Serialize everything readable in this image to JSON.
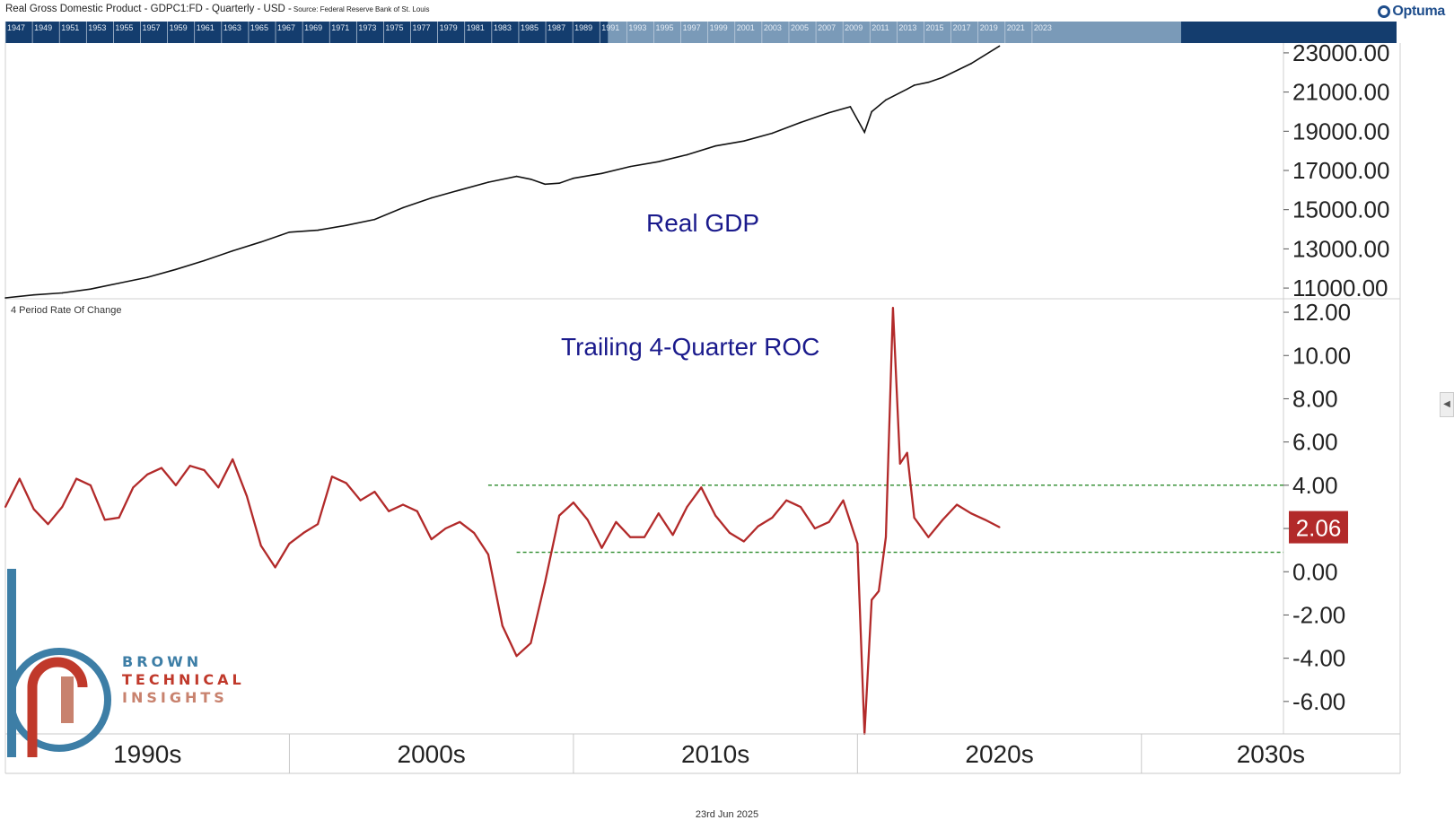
{
  "header": {
    "title": "Real Gross Domestic Product - GDPC1:FD - Quarterly - USD -",
    "source": "Source: Federal Reserve Bank of St. Louis",
    "logo_text": "Optuma"
  },
  "navigator": {
    "years": [
      "1947",
      "1949",
      "1951",
      "1953",
      "1955",
      "1957",
      "1959",
      "1961",
      "1963",
      "1965",
      "1967",
      "1969",
      "1971",
      "1973",
      "1975",
      "1977",
      "1979",
      "1981",
      "1983",
      "1985",
      "1987",
      "1989",
      "1991",
      "1993",
      "1995",
      "1997",
      "1999",
      "2001",
      "2003",
      "2005",
      "2007",
      "2009",
      "2011",
      "2013",
      "2015",
      "2017",
      "2019",
      "2021",
      "2023"
    ]
  },
  "panels": {
    "top_annotation": "Real GDP",
    "bottom_annotation": "Trailing 4-Quarter ROC",
    "bottom_indicator": "4 Period Rate Of Change",
    "last_value_label": "2.06"
  },
  "x_axis": {
    "decades": [
      "1990s",
      "2000s",
      "2010s",
      "2020s",
      "2030s"
    ]
  },
  "footer": {
    "date": "23rd Jun 2025"
  },
  "brand": {
    "line1": "BROWN",
    "line2": "TECHNICAL",
    "line3": "INSIGHTS"
  },
  "colors": {
    "gdp_line": "#111111",
    "roc_line": "#b22a2a",
    "dashed": "#2a8a2a",
    "annotation": "#1a1a8c",
    "nav_dark": "#143d6e",
    "nav_light": "#7a9ab8",
    "brand_blue": "#3d7ea6",
    "brand_red": "#c0392b"
  },
  "chart_data": [
    {
      "type": "line",
      "title": "Real GDP",
      "ylim": [
        10500,
        23500
      ],
      "y_ticks": [
        "23000.00",
        "21000.00",
        "19000.00",
        "17000.00",
        "15000.00",
        "13000.00",
        "11000.00"
      ],
      "x_range": [
        1990.0,
        2035.0
      ],
      "series": [
        {
          "x": [
            1990.0,
            1991.0,
            1992.0,
            1993.0,
            1994.0,
            1995.0,
            1996.0,
            1997.0,
            1998.0,
            1999.0,
            2000.0,
            2001.0,
            2002.0,
            2003.0,
            2004.0,
            2005.0,
            2006.0,
            2007.0,
            2008.0,
            2008.5,
            2009.0,
            2009.5,
            2010.0,
            2011.0,
            2012.0,
            2013.0,
            2014.0,
            2015.0,
            2016.0,
            2017.0,
            2018.0,
            2019.0,
            2019.75,
            2020.25,
            2020.5,
            2021.0,
            2021.75,
            2022.0,
            2022.5,
            2023.0,
            2024.0,
            2025.0
          ],
          "y": [
            10500,
            10650,
            10750,
            10950,
            11250,
            11550,
            11950,
            12400,
            12900,
            13350,
            13850,
            13950,
            14200,
            14500,
            15100,
            15600,
            16000,
            16400,
            16700,
            16550,
            16300,
            16350,
            16600,
            16850,
            17200,
            17450,
            17800,
            18250,
            18500,
            18900,
            19450,
            19950,
            20250,
            18950,
            20000,
            20600,
            21150,
            21350,
            21500,
            21750,
            22450,
            23350
          ]
        }
      ]
    },
    {
      "type": "line",
      "title": "Trailing 4-Quarter ROC",
      "ylim": [
        -7.5,
        12.5
      ],
      "y_ticks": [
        "12.00",
        "10.00",
        "8.00",
        "6.00",
        "4.00",
        "2.00",
        "0.00",
        "-2.00",
        "-4.00",
        "-6.00"
      ],
      "x_range": [
        1990.0,
        2035.0
      ],
      "series": [
        {
          "name": "4 Period Rate Of Change",
          "x": [
            1990.0,
            1990.5,
            1991.0,
            1991.5,
            1992.0,
            1992.5,
            1993.0,
            1993.5,
            1994.0,
            1994.5,
            1995.0,
            1995.5,
            1996.0,
            1996.5,
            1997.0,
            1997.5,
            1998.0,
            1998.5,
            1999.0,
            1999.5,
            2000.0,
            2000.5,
            2001.0,
            2001.5,
            2002.0,
            2002.5,
            2003.0,
            2003.5,
            2004.0,
            2004.5,
            2005.0,
            2005.5,
            2006.0,
            2006.5,
            2007.0,
            2007.5,
            2008.0,
            2008.5,
            2009.0,
            2009.5,
            2010.0,
            2010.5,
            2011.0,
            2011.5,
            2012.0,
            2012.5,
            2013.0,
            2013.5,
            2014.0,
            2014.5,
            2015.0,
            2015.5,
            2016.0,
            2016.5,
            2017.0,
            2017.5,
            2018.0,
            2018.5,
            2019.0,
            2019.5,
            2020.0,
            2020.25,
            2020.5,
            2020.75,
            2021.0,
            2021.25,
            2021.5,
            2021.75,
            2022.0,
            2022.5,
            2023.0,
            2023.5,
            2024.0,
            2024.5,
            2025.0
          ],
          "y": [
            3.0,
            4.3,
            2.9,
            2.2,
            3.0,
            4.3,
            4.0,
            2.4,
            2.5,
            3.9,
            4.5,
            4.8,
            4.0,
            4.9,
            4.7,
            3.9,
            5.2,
            3.5,
            1.2,
            0.2,
            1.3,
            1.8,
            2.2,
            4.4,
            4.1,
            3.3,
            3.7,
            2.8,
            3.1,
            2.8,
            1.5,
            2.0,
            2.3,
            1.8,
            0.8,
            -2.5,
            -3.9,
            -3.3,
            -0.5,
            2.6,
            3.2,
            2.4,
            1.1,
            2.3,
            1.6,
            1.6,
            2.7,
            1.7,
            3.0,
            3.9,
            2.6,
            1.8,
            1.4,
            2.1,
            2.5,
            3.3,
            3.0,
            2.0,
            2.3,
            3.3,
            1.3,
            -7.5,
            -1.3,
            -0.9,
            1.6,
            12.2,
            5.0,
            5.5,
            2.5,
            1.6,
            2.4,
            3.1,
            2.7,
            2.4,
            2.06
          ]
        }
      ],
      "reference_lines": [
        {
          "value": 4.0,
          "x_start": 2007.0,
          "x_end": 2035.0
        },
        {
          "value": 0.9,
          "x_start": 2008.0,
          "x_end": 2035.0
        }
      ],
      "last_value": 2.06
    }
  ]
}
